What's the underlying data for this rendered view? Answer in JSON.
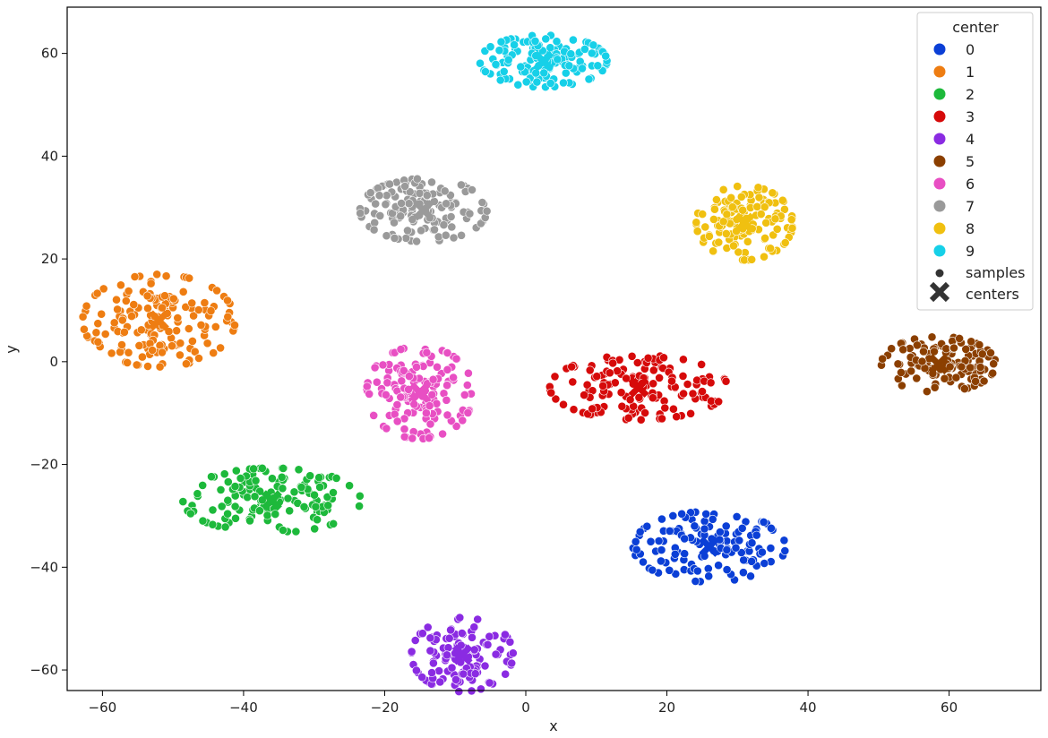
{
  "chart_data": {
    "type": "scatter",
    "title": "",
    "xlabel": "x",
    "ylabel": "y",
    "xlim": [
      -65,
      73
    ],
    "ylim": [
      -64,
      69
    ],
    "xticks": [
      -60,
      -40,
      -20,
      0,
      20,
      40,
      60
    ],
    "yticks": [
      -60,
      -40,
      -20,
      0,
      20,
      40,
      60
    ],
    "grid": false,
    "legend": {
      "title": "center",
      "placement": "top-right",
      "samples_label": "samples",
      "centers_label": "centers"
    },
    "series": [
      {
        "name": "0",
        "color": "#0b3fd6",
        "center": [
          26,
          -36
        ],
        "spread": [
          6,
          3.8
        ],
        "n": 130
      },
      {
        "name": "1",
        "color": "#ee7d12",
        "center": [
          -52,
          8
        ],
        "spread": [
          6,
          5
        ],
        "n": 170
      },
      {
        "name": "2",
        "color": "#1db93b",
        "center": [
          -36,
          -27
        ],
        "spread": [
          7,
          3.5
        ],
        "n": 150
      },
      {
        "name": "3",
        "color": "#d60a0a",
        "center": [
          16,
          -5
        ],
        "spread": [
          7,
          3.5
        ],
        "n": 150
      },
      {
        "name": "4",
        "color": "#8a2be2",
        "center": [
          -9,
          -57
        ],
        "spread": [
          4,
          4
        ],
        "n": 130
      },
      {
        "name": "5",
        "color": "#8b3f00",
        "center": [
          58.5,
          -0.5
        ],
        "spread": [
          4.5,
          3
        ],
        "n": 130
      },
      {
        "name": "6",
        "color": "#e84fc3",
        "center": [
          -15,
          -6
        ],
        "spread": [
          4.2,
          5
        ],
        "n": 150
      },
      {
        "name": "7",
        "color": "#9a9a9a",
        "center": [
          -14.5,
          29.5
        ],
        "spread": [
          5,
          3.4
        ],
        "n": 150
      },
      {
        "name": "8",
        "color": "#f0c010",
        "center": [
          31,
          27
        ],
        "spread": [
          3.8,
          4
        ],
        "n": 140
      },
      {
        "name": "9",
        "color": "#16d0e8",
        "center": [
          2.5,
          58.5
        ],
        "spread": [
          5,
          2.8
        ],
        "n": 140
      }
    ]
  }
}
